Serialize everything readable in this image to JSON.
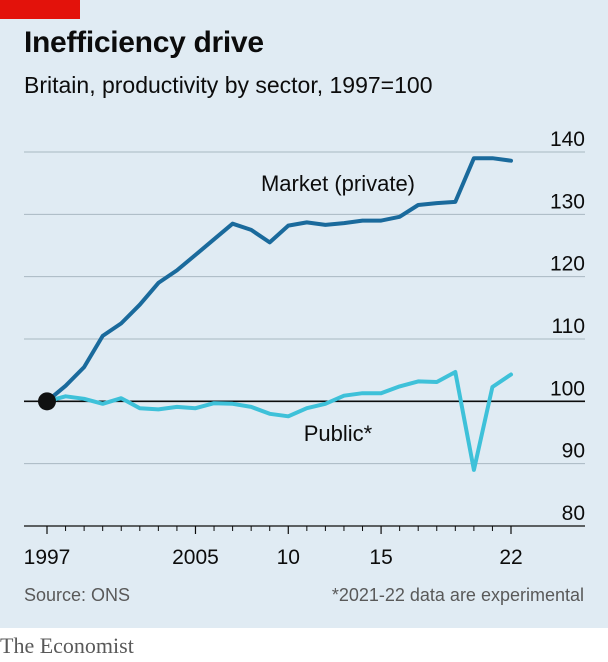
{
  "header": {
    "title": "Inefficiency drive",
    "subtitle": "Britain, productivity by sector, 1997=100"
  },
  "footer": {
    "source": "Source: ONS",
    "note": "*2021-22 data are experimental",
    "brand": "The Economist"
  },
  "colors": {
    "background": "#e0ebf3",
    "accent_red": "#e3120b",
    "market": "#1a6a9c",
    "public": "#3ec1d9",
    "grid": "#a9b8c2",
    "axis": "#0c0c0c"
  },
  "chart_data": {
    "type": "line",
    "title": "Inefficiency drive",
    "subtitle": "Britain, productivity by sector, 1997=100",
    "xlabel": "",
    "ylabel": "",
    "ylim": [
      80,
      140
    ],
    "xlim": [
      1997,
      2022
    ],
    "y_ticks": [
      80,
      90,
      100,
      110,
      120,
      130,
      140
    ],
    "y_tick_labels": [
      "80",
      "90",
      "100",
      "110",
      "120",
      "130",
      "140"
    ],
    "x_ticks": [
      1997,
      2005,
      2010,
      2015,
      2022
    ],
    "x_tick_labels": [
      "1997",
      "2005",
      "10",
      "15",
      "22"
    ],
    "grid": true,
    "base_marker": {
      "x": 1997,
      "y": 100
    },
    "series": [
      {
        "name": "Market (private)",
        "color": "#1a6a9c",
        "x": [
          1997,
          1998,
          1999,
          2000,
          2001,
          2002,
          2003,
          2004,
          2005,
          2006,
          2007,
          2008,
          2009,
          2010,
          2011,
          2012,
          2013,
          2014,
          2015,
          2016,
          2017,
          2018,
          2019,
          2020,
          2021,
          2022
        ],
        "y": [
          100,
          102.5,
          105.5,
          110.5,
          112.5,
          115.5,
          119,
          121,
          123.5,
          126,
          128.5,
          127.5,
          125.5,
          128.2,
          128.7,
          128.3,
          128.6,
          129,
          129,
          129.6,
          131.5,
          131.8,
          132,
          139,
          139,
          138.6
        ]
      },
      {
        "name": "Public*",
        "color": "#3ec1d9",
        "x": [
          1997,
          1998,
          1999,
          2000,
          2001,
          2002,
          2003,
          2004,
          2005,
          2006,
          2007,
          2008,
          2009,
          2010,
          2011,
          2012,
          2013,
          2014,
          2015,
          2016,
          2017,
          2018,
          2019,
          2020,
          2021,
          2022
        ],
        "y": [
          100,
          100.8,
          100.4,
          99.6,
          100.5,
          98.9,
          98.7,
          99.1,
          98.9,
          99.7,
          99.6,
          99.1,
          98,
          97.6,
          98.9,
          99.6,
          100.9,
          101.3,
          101.3,
          102.4,
          103.2,
          103.1,
          104.7,
          89,
          102.3,
          104.3
        ]
      }
    ]
  }
}
